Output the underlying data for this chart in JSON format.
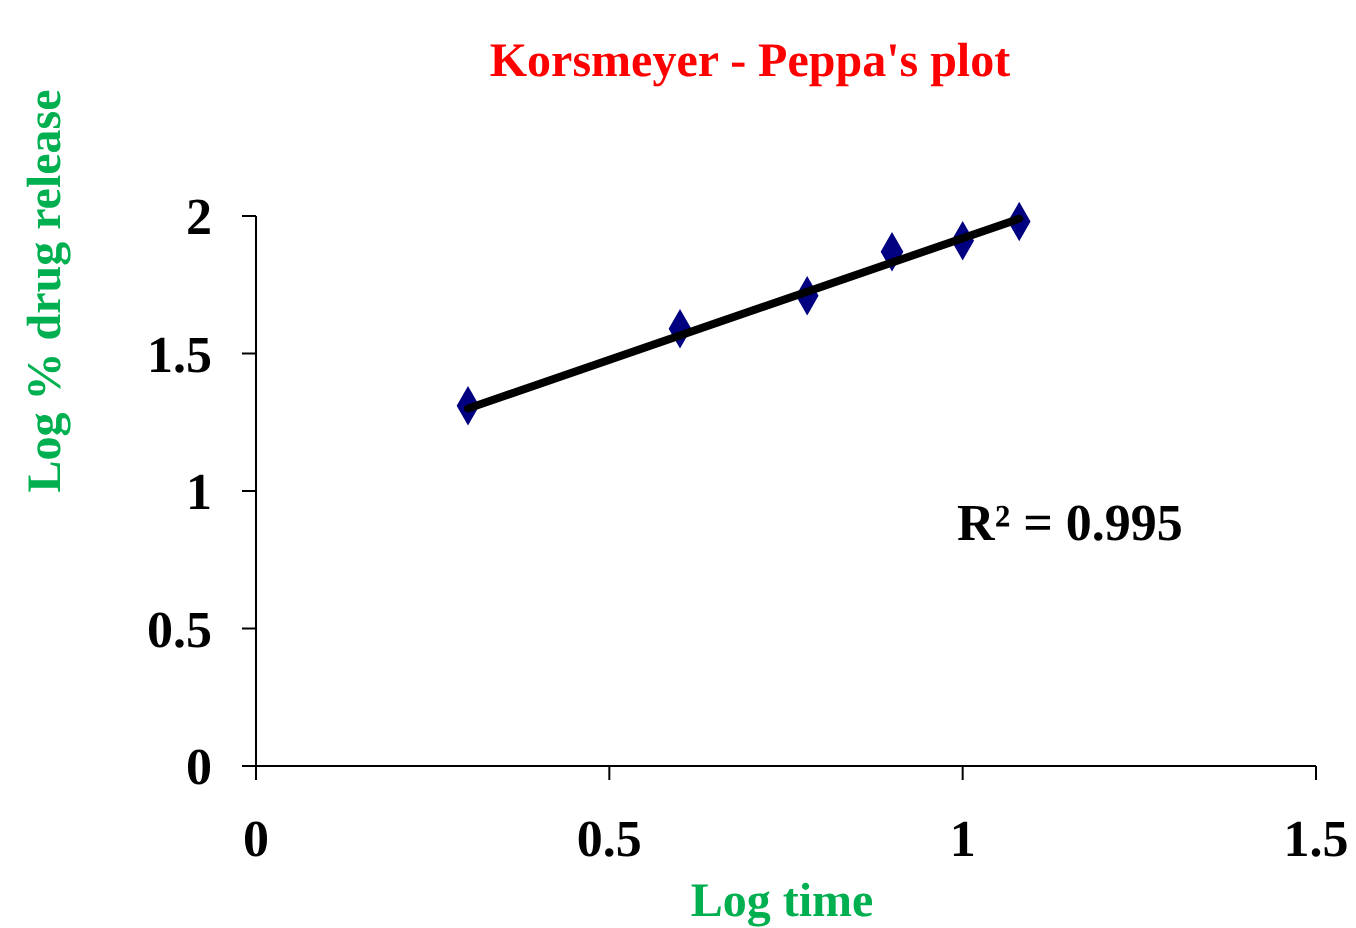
{
  "chart_data": {
    "type": "scatter",
    "title": "Korsmeyer - Peppa's plot",
    "xlabel": "Log time",
    "ylabel": "Log % drug release",
    "xlim": [
      0,
      1.5
    ],
    "xticks": [
      0,
      0.5,
      1,
      1.5
    ],
    "ylim": [
      0,
      2
    ],
    "yticks": [
      0,
      0.5,
      1,
      1.5,
      2
    ],
    "grid": false,
    "series": [
      {
        "color": "#000080",
        "marker": "diamond",
        "x": [
          0.3,
          0.6,
          0.78,
          0.9,
          1.0,
          1.08
        ],
        "values": [
          1.31,
          1.59,
          1.71,
          1.87,
          1.91,
          1.98
        ]
      },
      {
        "type": "line",
        "color": "#000000",
        "marker": "none",
        "line_style": "solid",
        "x": [
          0.3,
          1.08
        ],
        "values": [
          1.3,
          1.99
        ]
      }
    ],
    "annotations": [
      "R² = 0.995"
    ]
  }
}
